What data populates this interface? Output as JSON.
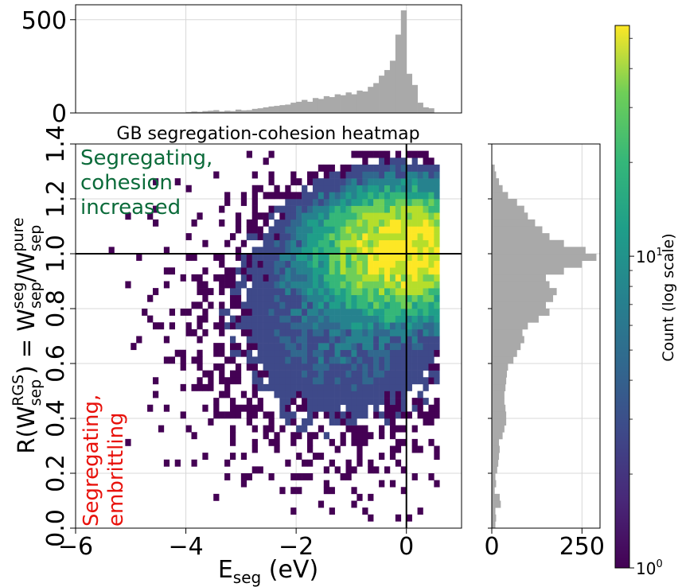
{
  "chart_data": [
    {
      "id": "main_heatmap",
      "type": "heatmap",
      "title": "GB segregation-cohesion heatmap",
      "xlabel_main": "E",
      "xlabel_sub": "seg",
      "xlabel_tail": " (eV)",
      "ylabel_parts": {
        "r": "R(W",
        "sub1": "sep",
        "sup1": "RGS",
        "eq": ") = W",
        "sub2": "sep",
        "sup2": "seg",
        "slash": "/W",
        "sub3": "sep",
        "sup3": "pure"
      },
      "xlim": [
        -6,
        1
      ],
      "ylim": [
        0,
        1.4
      ],
      "x_ticks": [
        -6,
        -4,
        -2,
        0
      ],
      "y_ticks": [
        0.0,
        0.2,
        0.4,
        0.6,
        0.8,
        1.0,
        1.2,
        1.4
      ],
      "x_tick_labels": [
        "−6",
        "−4",
        "−2",
        "0"
      ],
      "y_tick_labels": [
        "0.0",
        "0.2",
        "0.4",
        "0.6",
        "0.8",
        "1.0",
        "1.2",
        "1.4"
      ],
      "grid": true,
      "reference_lines": {
        "vertical_x": 0,
        "horizontal_y": 1.0
      },
      "colormap": "viridis",
      "color_scale": "log",
      "annotations": [
        {
          "text_lines": [
            "Segregating,",
            "cohesion",
            "increased"
          ],
          "color": "#0b6b3a",
          "position": "top-left"
        },
        {
          "text_lines": [
            "Segregating,",
            "embrittling"
          ],
          "color": "#e8120c",
          "position": "bottom-left",
          "rotation": "vertical"
        }
      ],
      "bin_width_x": 0.1,
      "bin_width_y": 0.025,
      "density_model": "concentrated near (E_seg ≈ 0, R ≈ 1.0); sparse tail toward E_seg = −6 and R = 0"
    },
    {
      "id": "top_histogram",
      "type": "bar",
      "ylim": [
        0,
        580
      ],
      "y_ticks": [
        0,
        500
      ],
      "y_tick_labels": [
        "0",
        "500"
      ],
      "grid": true,
      "bar_color": "#a9a9a9",
      "x": [
        -4.0,
        -3.9,
        -3.8,
        -3.7,
        -3.6,
        -3.5,
        -3.4,
        -3.3,
        -3.2,
        -3.1,
        -3.0,
        -2.9,
        -2.8,
        -2.7,
        -2.6,
        -2.5,
        -2.4,
        -2.3,
        -2.2,
        -2.1,
        -2.0,
        -1.9,
        -1.8,
        -1.7,
        -1.6,
        -1.5,
        -1.4,
        -1.3,
        -1.2,
        -1.1,
        -1.0,
        -0.9,
        -0.8,
        -0.7,
        -0.6,
        -0.5,
        -0.4,
        -0.3,
        -0.2,
        -0.1,
        0.0,
        0.1,
        0.2,
        0.3,
        0.4
      ],
      "values": [
        5,
        8,
        6,
        10,
        12,
        15,
        8,
        12,
        10,
        18,
        14,
        15,
        22,
        25,
        30,
        35,
        38,
        42,
        45,
        55,
        60,
        70,
        60,
        80,
        75,
        90,
        85,
        100,
        95,
        110,
        100,
        120,
        115,
        140,
        160,
        200,
        230,
        280,
        420,
        550,
        210,
        150,
        55,
        30,
        25
      ]
    },
    {
      "id": "right_histogram",
      "type": "bar",
      "orientation": "horizontal",
      "xlim": [
        0,
        300
      ],
      "x_ticks": [
        0,
        250
      ],
      "x_tick_labels": [
        "0",
        "250"
      ],
      "grid": true,
      "bar_color": "#a9a9a9",
      "y": [
        0.025,
        0.05,
        0.075,
        0.1,
        0.125,
        0.15,
        0.175,
        0.2,
        0.225,
        0.25,
        0.275,
        0.3,
        0.325,
        0.35,
        0.375,
        0.4,
        0.425,
        0.45,
        0.475,
        0.5,
        0.525,
        0.55,
        0.575,
        0.6,
        0.625,
        0.65,
        0.675,
        0.7,
        0.725,
        0.75,
        0.775,
        0.8,
        0.825,
        0.85,
        0.875,
        0.9,
        0.925,
        0.95,
        0.975,
        1.0,
        1.025,
        1.05,
        1.075,
        1.1,
        1.125,
        1.15,
        1.175,
        1.2,
        1.225,
        1.25,
        1.275,
        1.3,
        1.325
      ],
      "values": [
        10,
        12,
        10,
        25,
        22,
        8,
        12,
        10,
        15,
        18,
        20,
        22,
        20,
        30,
        35,
        40,
        40,
        38,
        35,
        35,
        38,
        40,
        42,
        45,
        60,
        70,
        80,
        90,
        85,
        100,
        130,
        160,
        150,
        170,
        180,
        160,
        150,
        200,
        250,
        290,
        260,
        200,
        160,
        140,
        120,
        100,
        90,
        70,
        45,
        30,
        20,
        12,
        8
      ]
    },
    {
      "id": "colorbar",
      "type": "colorbar",
      "label": "Count (log scale)",
      "scale": "log",
      "range": [
        1,
        55
      ],
      "tick_labels": [
        {
          "base": "10",
          "exp": "0",
          "value": 1
        },
        {
          "base": "10",
          "exp": "1",
          "value": 10
        }
      ]
    }
  ]
}
